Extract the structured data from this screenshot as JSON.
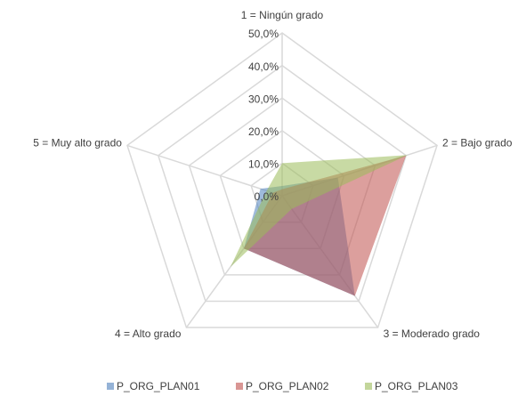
{
  "chart_data": {
    "type": "radar",
    "categories": [
      "1 = Ningún grado",
      "2 = Bajo grado",
      "3 = Moderado grado",
      "4 = Alto grado",
      "5 = Muy alto grado"
    ],
    "series": [
      {
        "name": "P_ORG_PLAN01",
        "color": "#4f81bd",
        "values": [
          3,
          18,
          38,
          20,
          7
        ]
      },
      {
        "name": "P_ORG_PLAN02",
        "color": "#c0504d",
        "values": [
          2,
          40,
          38,
          20,
          3
        ]
      },
      {
        "name": "P_ORG_PLAN03",
        "color": "#9bbb59",
        "values": [
          10,
          40.5,
          5,
          27,
          5
        ]
      }
    ],
    "ylim": [
      0,
      50
    ],
    "yticks": [
      {
        "value": 0,
        "label": "0,0%"
      },
      {
        "value": 10,
        "label": "10,0%"
      },
      {
        "value": 20,
        "label": "20,0%"
      },
      {
        "value": 30,
        "label": "30,0%"
      },
      {
        "value": 40,
        "label": "40,0%"
      },
      {
        "value": 50,
        "label": "50,0%"
      }
    ],
    "grid": true,
    "legend": "bottom"
  }
}
